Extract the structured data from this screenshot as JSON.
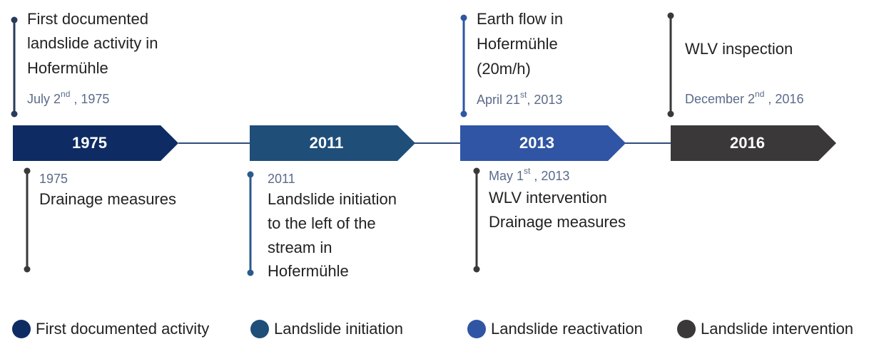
{
  "stages": [
    {
      "label": "1975",
      "color": "#0f2b63"
    },
    {
      "label": "2011",
      "color": "#1f4e79"
    },
    {
      "label": "2013",
      "color": "#2f55a4"
    },
    {
      "label": "2016",
      "color": "#3a3838"
    }
  ],
  "connector_color": "#2e4d7b",
  "events_above": [
    {
      "lines": [
        "First documented",
        "landslide activity in",
        "Hofermühle"
      ],
      "date": {
        "main": "July 2",
        "sup": "nd",
        "tail": " , 1975"
      },
      "line_color": "#2a3a5a"
    },
    {
      "lines": [
        "Earth flow in",
        "Hofermühle",
        "(20m/h)"
      ],
      "date": {
        "main": "April 21",
        "sup": "st",
        "tail": ", 2013"
      },
      "line_color": "#2f55a4"
    },
    {
      "lines": [
        "WLV inspection"
      ],
      "date": {
        "main": "December 2",
        "sup": "nd",
        "tail": " , 2016"
      },
      "line_color": "#3a3838"
    }
  ],
  "events_below": [
    {
      "date": {
        "main": "1975"
      },
      "lines": [
        "Drainage measures"
      ],
      "line_color": "#3a3838"
    },
    {
      "date": {
        "main": "2011"
      },
      "lines": [
        "Landslide initiation",
        "to the left of the",
        "stream in",
        "Hofermühle"
      ],
      "line_color": "#2b5a8a"
    },
    {
      "date": {
        "main": "May 1",
        "sup": "st",
        "tail": " , 2013"
      },
      "lines": [
        "WLV intervention",
        "Drainage measures"
      ],
      "line_color": "#3a3838"
    }
  ],
  "legend": [
    {
      "label": "First documented activity",
      "color": "#0f2b63"
    },
    {
      "label": "Landslide initiation",
      "color": "#1f4e79"
    },
    {
      "label": "Landslide reactivation",
      "color": "#2f55a4"
    },
    {
      "label": "Landslide intervention",
      "color": "#3a3838"
    }
  ]
}
